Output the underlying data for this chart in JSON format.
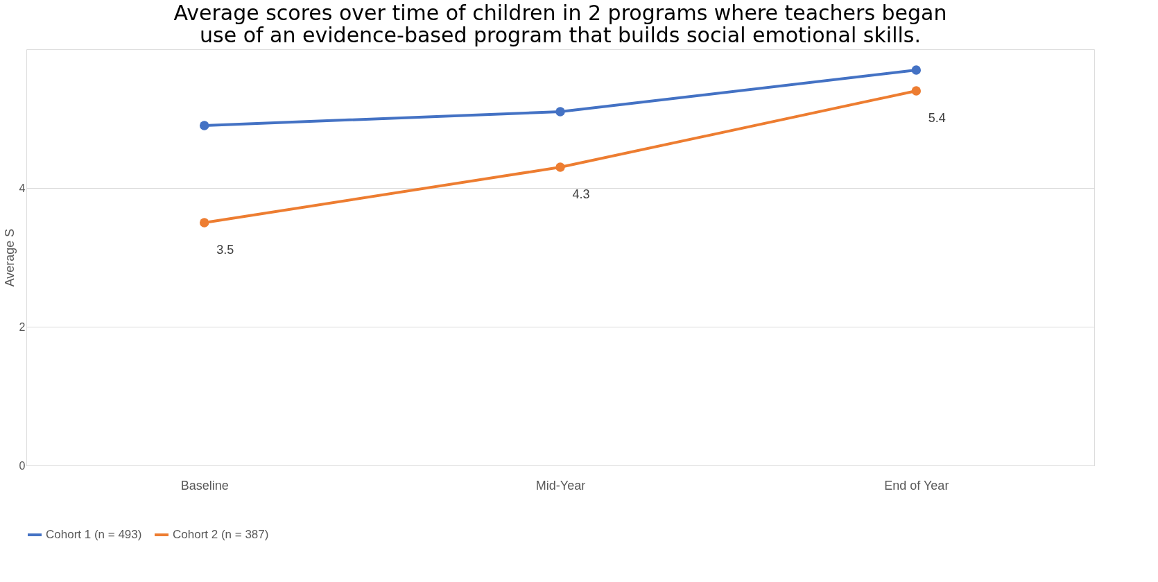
{
  "chart_data": {
    "type": "line",
    "title": "Average scores over time of children in 2 programs where teachers began use of an evidence-based program that builds social emotional skills.",
    "ylabel": "Average S",
    "categories": [
      "Baseline",
      "Mid-Year",
      "End of Year"
    ],
    "series": [
      {
        "name": "Cohort 1 (n = 493)",
        "color": "#4472c4",
        "values": [
          4.9,
          5.1,
          5.7
        ]
      },
      {
        "name": "Cohort 2 (n = 387)",
        "color": "#ed7d31",
        "values": [
          3.5,
          4.3,
          5.4
        ],
        "value_labels": [
          "3.5",
          "4.3",
          "5.4"
        ]
      }
    ],
    "ylim": [
      0,
      6
    ],
    "yticks": [
      0,
      2,
      4
    ],
    "grid": "y",
    "legend": "bottom",
    "marker": "circle",
    "line_style": "solid"
  }
}
